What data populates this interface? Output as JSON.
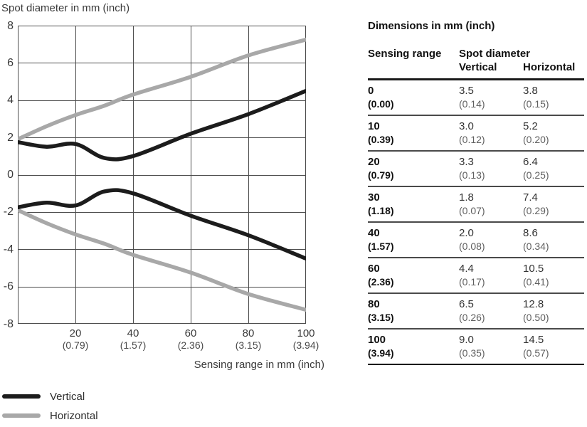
{
  "chart": {
    "title": "Spot diameter in mm (inch)",
    "x_axis_title": "Sensing range in mm (inch)",
    "y_ticks": [
      "8",
      "6",
      "4",
      "2",
      "0",
      "-2",
      "-4",
      "-6",
      "-8"
    ],
    "x_ticks": [
      {
        "mm": "20",
        "inch": "(0.79)"
      },
      {
        "mm": "40",
        "inch": "(1.57)"
      },
      {
        "mm": "60",
        "inch": "(2.36)"
      },
      {
        "mm": "80",
        "inch": "(3.15)"
      },
      {
        "mm": "100",
        "inch": "(3.94)"
      }
    ],
    "legend": [
      {
        "label": "Vertical",
        "color": "#1c1c1c"
      },
      {
        "label": "Horizontal",
        "color": "#a8a8a8"
      }
    ],
    "grid_color": "#4d4d4d"
  },
  "chart_data": {
    "type": "line",
    "title": "Spot diameter in mm (inch)",
    "xlabel": "Sensing range in mm (inch)",
    "ylabel": "Spot diameter in mm (inch)",
    "xlim": [
      0,
      100
    ],
    "ylim": [
      -8,
      8
    ],
    "x_gridlines": [
      0,
      20,
      40,
      60,
      80,
      100
    ],
    "y_gridlines": [
      -8,
      -6,
      -4,
      -2,
      0,
      2,
      4,
      6,
      8
    ],
    "grid": true,
    "legend_position": "bottom-left",
    "plot_style": "each series is drawn as a mirrored pair of curves at +diameter/2 and -diameter/2 around zero",
    "x": [
      0,
      10,
      20,
      30,
      40,
      60,
      80,
      100
    ],
    "series": [
      {
        "name": "Vertical",
        "color": "#1c1c1c",
        "diameter_mm": [
          3.5,
          3.0,
          3.3,
          1.8,
          2.0,
          4.4,
          6.5,
          9.0
        ]
      },
      {
        "name": "Horizontal",
        "color": "#a8a8a8",
        "diameter_mm": [
          3.8,
          5.2,
          6.4,
          7.4,
          8.6,
          10.5,
          12.8,
          14.5
        ]
      }
    ]
  },
  "table": {
    "title": "Dimensions in mm (inch)",
    "col1_header": "Sensing range",
    "col2_header": "Spot diameter",
    "sub_header_vertical": "Vertical",
    "sub_header_horizontal": "Horizontal",
    "rows": [
      {
        "range_mm": "0",
        "range_inch": "(0.00)",
        "vertical_mm": "3.5",
        "vertical_inch": "(0.14)",
        "horizontal_mm": "3.8",
        "horizontal_inch": "(0.15)"
      },
      {
        "range_mm": "10",
        "range_inch": "(0.39)",
        "vertical_mm": "3.0",
        "vertical_inch": "(0.12)",
        "horizontal_mm": "5.2",
        "horizontal_inch": "(0.20)"
      },
      {
        "range_mm": "20",
        "range_inch": "(0.79)",
        "vertical_mm": "3.3",
        "vertical_inch": "(0.13)",
        "horizontal_mm": "6.4",
        "horizontal_inch": "(0.25)"
      },
      {
        "range_mm": "30",
        "range_inch": "(1.18)",
        "vertical_mm": "1.8",
        "vertical_inch": "(0.07)",
        "horizontal_mm": "7.4",
        "horizontal_inch": "(0.29)"
      },
      {
        "range_mm": "40",
        "range_inch": "(1.57)",
        "vertical_mm": "2.0",
        "vertical_inch": "(0.08)",
        "horizontal_mm": "8.6",
        "horizontal_inch": "(0.34)"
      },
      {
        "range_mm": "60",
        "range_inch": "(2.36)",
        "vertical_mm": "4.4",
        "vertical_inch": "(0.17)",
        "horizontal_mm": "10.5",
        "horizontal_inch": "(0.41)"
      },
      {
        "range_mm": "80",
        "range_inch": "(3.15)",
        "vertical_mm": "6.5",
        "vertical_inch": "(0.26)",
        "horizontal_mm": "12.8",
        "horizontal_inch": "(0.50)"
      },
      {
        "range_mm": "100",
        "range_inch": "(3.94)",
        "vertical_mm": "9.0",
        "vertical_inch": "(0.35)",
        "horizontal_mm": "14.5",
        "horizontal_inch": "(0.57)"
      }
    ]
  }
}
